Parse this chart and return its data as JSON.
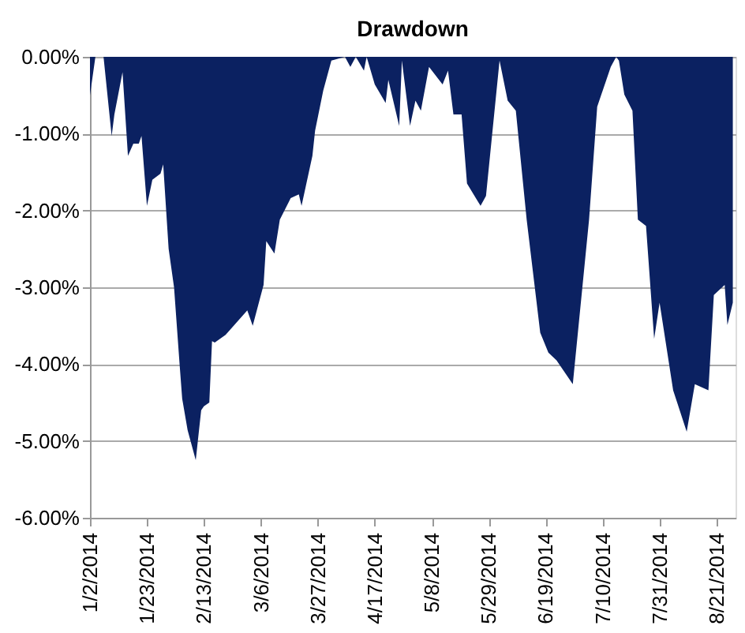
{
  "chart_data": {
    "type": "area",
    "title": "Drawdown",
    "x": [
      "2014-01-02",
      "2014-01-04",
      "2014-01-07",
      "2014-01-10",
      "2014-01-11",
      "2014-01-14",
      "2014-01-16",
      "2014-01-18",
      "2014-01-20",
      "2014-01-21",
      "2014-01-23",
      "2014-01-25",
      "2014-01-28",
      "2014-01-29",
      "2014-01-31",
      "2014-02-02",
      "2014-02-04",
      "2014-02-05",
      "2014-02-07",
      "2014-02-10",
      "2014-02-12",
      "2014-02-13",
      "2014-02-15",
      "2014-02-16",
      "2014-02-17",
      "2014-02-21",
      "2014-03-01",
      "2014-03-03",
      "2014-03-07",
      "2014-03-08",
      "2014-03-11",
      "2014-03-13",
      "2014-03-17",
      "2014-03-20",
      "2014-03-21",
      "2014-03-25",
      "2014-03-26",
      "2014-03-29",
      "2014-04-01",
      "2014-04-06",
      "2014-04-08",
      "2014-04-10",
      "2014-04-13",
      "2014-04-14",
      "2014-04-17",
      "2014-04-21",
      "2014-04-22",
      "2014-04-26",
      "2014-04-27",
      "2014-04-30",
      "2014-05-02",
      "2014-05-04",
      "2014-05-07",
      "2014-05-12",
      "2014-05-14",
      "2014-05-16",
      "2014-05-19",
      "2014-05-21",
      "2014-05-26",
      "2014-05-28",
      "2014-06-02",
      "2014-06-05",
      "2014-06-08",
      "2014-06-12",
      "2014-06-17",
      "2014-06-20",
      "2014-06-23",
      "2014-06-29",
      "2014-07-05",
      "2014-07-08",
      "2014-07-13",
      "2014-07-15",
      "2014-07-16",
      "2014-07-18",
      "2014-07-21",
      "2014-07-23",
      "2014-07-26",
      "2014-07-29",
      "2014-07-31",
      "2014-08-05",
      "2014-08-10",
      "2014-08-13",
      "2014-08-18",
      "2014-08-20",
      "2014-08-24",
      "2014-08-25",
      "2014-08-27"
    ],
    "series": [
      {
        "color": "#0b2161",
        "values": [
          -0.5,
          0,
          0,
          -1.03,
          -0.75,
          -0.2,
          -1.29,
          -1.13,
          -1.13,
          -1.03,
          -1.94,
          -1.6,
          -1.52,
          -1.4,
          -2.5,
          -3.0,
          -3.98,
          -4.45,
          -4.86,
          -5.25,
          -4.6,
          -4.55,
          -4.5,
          -3.7,
          -3.72,
          -3.62,
          -3.3,
          -3.5,
          -2.97,
          -2.4,
          -2.56,
          -2.12,
          -1.84,
          -1.79,
          -1.94,
          -1.29,
          -0.96,
          -0.44,
          -0.05,
          0,
          -0.13,
          0,
          -0.18,
          0,
          -0.36,
          -0.6,
          -0.3,
          -0.9,
          -0.05,
          -0.9,
          -0.57,
          -0.7,
          -0.13,
          -0.36,
          -0.18,
          -0.75,
          -0.75,
          -1.65,
          -1.94,
          -1.81,
          -0.05,
          -0.57,
          -0.7,
          -2.12,
          -3.59,
          -3.85,
          -3.95,
          -4.26,
          -2.12,
          -0.65,
          -0.13,
          0,
          -0.05,
          -0.49,
          -0.7,
          -2.12,
          -2.2,
          -3.67,
          -3.2,
          -4.34,
          -4.88,
          -4.26,
          -4.34,
          -3.1,
          -2.97,
          -3.49,
          -3.2
        ]
      }
    ],
    "ylim": [
      -6,
      0
    ],
    "yticks": [
      {
        "value": 0,
        "label": "0.00%"
      },
      {
        "value": -1,
        "label": "-1.00%"
      },
      {
        "value": -2,
        "label": "-2.00%"
      },
      {
        "value": -3,
        "label": "-3.00%"
      },
      {
        "value": -4,
        "label": "-4.00%"
      },
      {
        "value": -5,
        "label": "-5.00%"
      },
      {
        "value": -6,
        "label": "-6.00%"
      }
    ],
    "xlim": [
      "2014-01-02",
      "2014-08-28"
    ],
    "xticks": [
      {
        "value": "2014-01-02",
        "label": "1/2/2014"
      },
      {
        "value": "2014-01-23",
        "label": "1/23/2014"
      },
      {
        "value": "2014-02-13",
        "label": "2/13/2014"
      },
      {
        "value": "2014-03-06",
        "label": "3/6/2014"
      },
      {
        "value": "2014-03-27",
        "label": "3/27/2014"
      },
      {
        "value": "2014-04-17",
        "label": "4/17/2014"
      },
      {
        "value": "2014-05-08",
        "label": "5/8/2014"
      },
      {
        "value": "2014-05-29",
        "label": "5/29/2014"
      },
      {
        "value": "2014-06-19",
        "label": "6/19/2014"
      },
      {
        "value": "2014-07-10",
        "label": "7/10/2014"
      },
      {
        "value": "2014-07-31",
        "label": "7/31/2014"
      },
      {
        "value": "2014-08-21",
        "label": "8/21/2014"
      }
    ],
    "grid": "y"
  }
}
